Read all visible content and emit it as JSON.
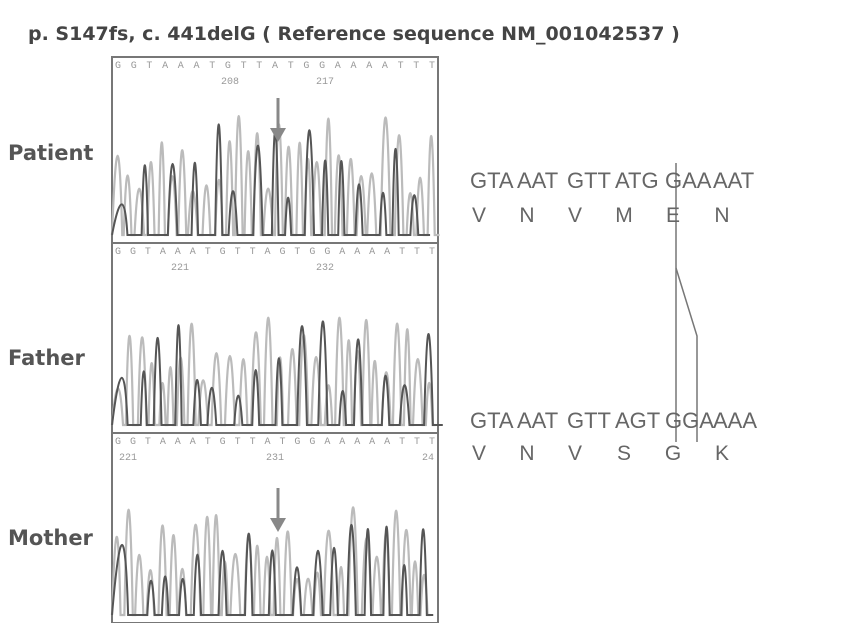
{
  "title": "p. S147fs, c. 441delG ( Reference sequence NM_001042537 )",
  "panels": [
    {
      "label": "Patient",
      "sequence": "GGTAAATGTTATGGAAAATTT",
      "positions": [
        208,
        217
      ]
    },
    {
      "label": "Father",
      "sequence": "GGTAAATGTTAGTGGAAAATTT",
      "positions": [
        221,
        232
      ]
    },
    {
      "label": "Mother",
      "sequence": "GGTAAATGTTATGGAAAAATTT",
      "positions": [
        221,
        231,
        24
      ]
    }
  ],
  "reference": {
    "codons": [
      "GTA",
      "AAT",
      "GTT",
      "ATG",
      "GAA",
      "AAT"
    ],
    "amino_acids": [
      "V",
      "N",
      "V",
      "M",
      "E",
      "N"
    ]
  },
  "mutant": {
    "codons": [
      "GTA",
      "AAT",
      "GTT",
      "AGT",
      "GGA",
      "AAA"
    ],
    "amino_acids": [
      "V",
      "N",
      "V",
      "S",
      "G",
      "K"
    ]
  }
}
